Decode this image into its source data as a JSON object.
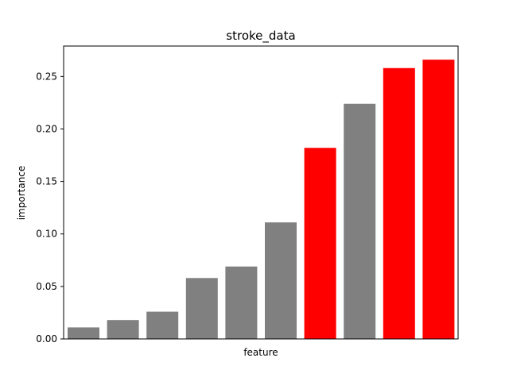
{
  "chart_data": {
    "type": "bar",
    "title": "stroke_data",
    "xlabel": "feature",
    "ylabel": "importance",
    "ylim": [
      0,
      0.279
    ],
    "yticks": [
      0.0,
      0.05,
      0.1,
      0.15,
      0.2,
      0.25
    ],
    "ytick_labels": [
      "0.00",
      "0.05",
      "0.10",
      "0.15",
      "0.20",
      "0.25"
    ],
    "grid": false,
    "values": [
      0.011,
      0.018,
      0.026,
      0.058,
      0.069,
      0.111,
      0.182,
      0.224,
      0.258,
      0.266
    ],
    "colors": [
      "#808080",
      "#808080",
      "#808080",
      "#808080",
      "#808080",
      "#808080",
      "#ff0000",
      "#808080",
      "#ff0000",
      "#ff0000"
    ]
  }
}
